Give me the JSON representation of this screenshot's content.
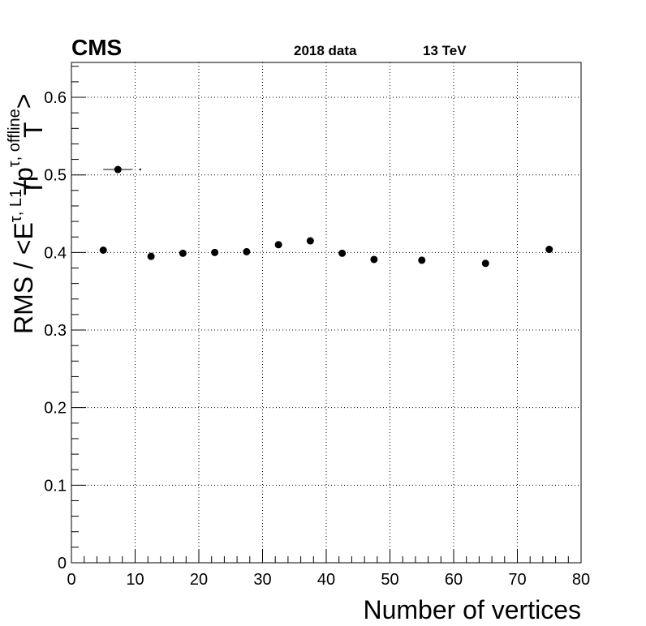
{
  "header": {
    "experiment": "CMS",
    "dataset": "2018 data",
    "energy": "13 TeV"
  },
  "chart_data": {
    "type": "scatter",
    "title": "",
    "xlabel": "Number of vertices",
    "ylabel": "RMS / <E_T^{τ, L1}/p_T^{τ, offline}>",
    "xlim": [
      0,
      80
    ],
    "ylim": [
      0,
      0.645
    ],
    "grid": true,
    "x_ticks": [
      0,
      10,
      20,
      30,
      40,
      50,
      60,
      70,
      80
    ],
    "x_tick_labels": [
      "0",
      "10",
      "20",
      "30",
      "40",
      "50",
      "60",
      "70",
      "80"
    ],
    "y_ticks": [
      0,
      0.1,
      0.2,
      0.3,
      0.4,
      0.5,
      0.6
    ],
    "y_tick_labels": [
      "0",
      "0.1",
      "0.2",
      "0.3",
      "0.4",
      "0.5",
      "0.6"
    ],
    "series": [
      {
        "points": [
          {
            "x": 5,
            "y": 0.403
          },
          {
            "x": 12.5,
            "y": 0.395
          },
          {
            "x": 17.5,
            "y": 0.399
          },
          {
            "x": 22.5,
            "y": 0.4
          },
          {
            "x": 27.5,
            "y": 0.401
          },
          {
            "x": 32.5,
            "y": 0.41
          },
          {
            "x": 37.5,
            "y": 0.415
          },
          {
            "x": 42.5,
            "y": 0.399
          },
          {
            "x": 47.5,
            "y": 0.391
          },
          {
            "x": 55,
            "y": 0.39
          },
          {
            "x": 65,
            "y": 0.386
          },
          {
            "x": 75,
            "y": 0.404
          }
        ]
      }
    ],
    "annotation_points": [
      {
        "x": 7.3,
        "y": 0.507,
        "xerr": 2.3
      },
      {
        "x": 10.8,
        "y": 0.507,
        "xerr": 0
      }
    ],
    "marker_color": "#000000",
    "grid_color": "#000000"
  }
}
